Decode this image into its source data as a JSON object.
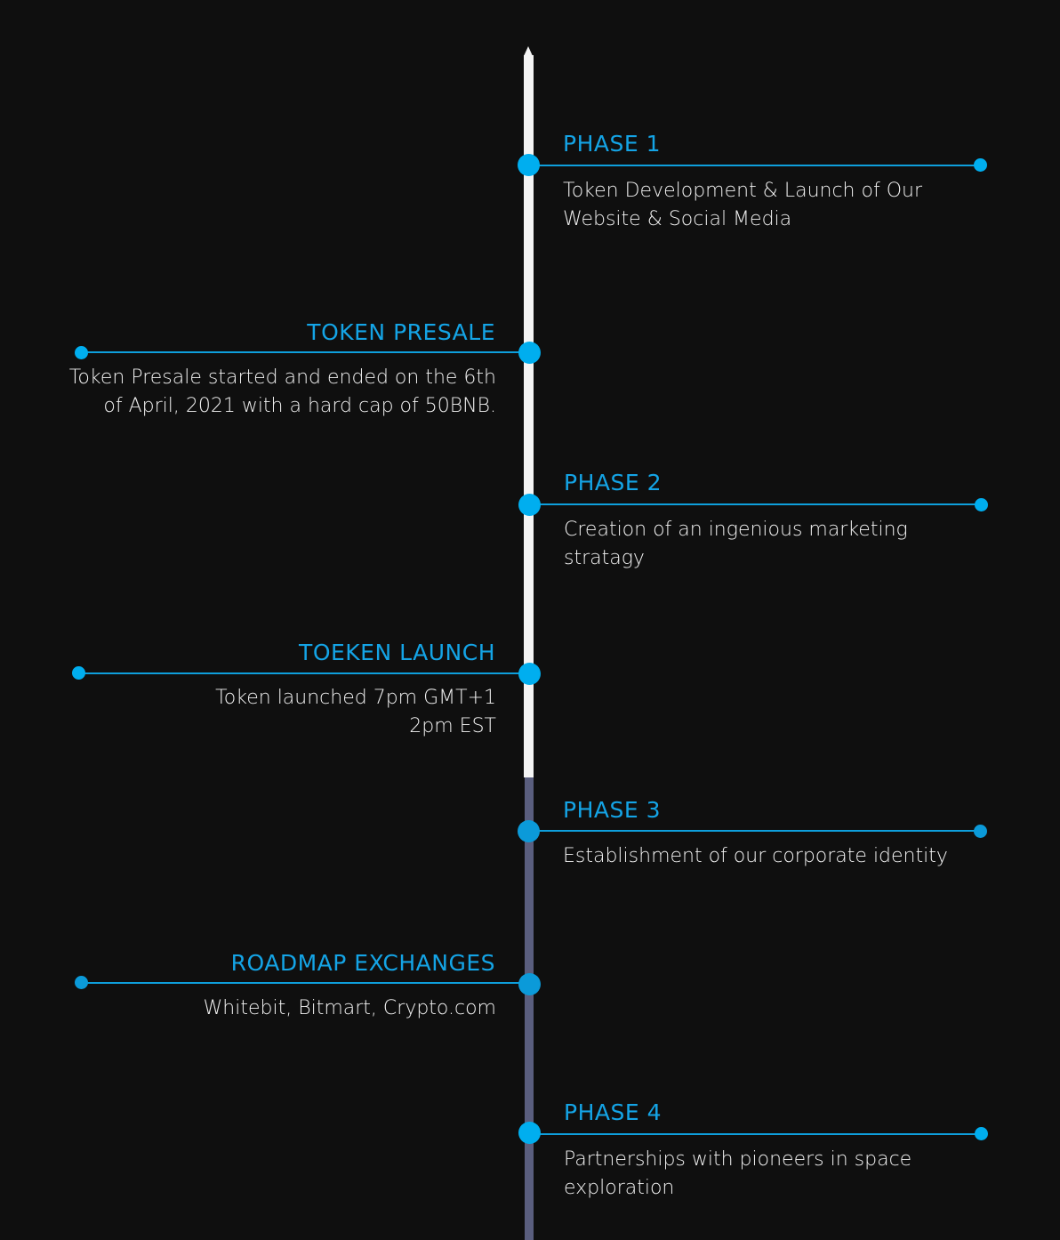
{
  "colors": {
    "background": "#0f0f0f",
    "accent": "#00aeef",
    "spine_completed": "#f4f4f4",
    "spine_pending": "#5a5e7e",
    "text": "#f1f1f1"
  },
  "roadmap": {
    "milestones": [
      {
        "title": "PHASE 1",
        "description": "Token Development & Launch of Our\nWebsite & Social Media"
      },
      {
        "title": "TOKEN PRESALE",
        "description": "Token Presale started and ended on the 6th\nof April, 2021 with a hard cap of 50BNB."
      },
      {
        "title": "PHASE 2",
        "description": "Creation of an ingenious marketing\nstratagy"
      },
      {
        "title": "TOEKEN LAUNCH",
        "description": "Token launched 7pm GMT+1\n2pm EST"
      },
      {
        "title": "PHASE 3",
        "description": "Establishment of our corporate identity"
      },
      {
        "title": "ROADMAP EXCHANGES",
        "description": "Whitebit, Bitmart, Crypto.com"
      },
      {
        "title": "PHASE 4",
        "description": "Partnerships with pioneers in space\nexploration"
      }
    ]
  }
}
